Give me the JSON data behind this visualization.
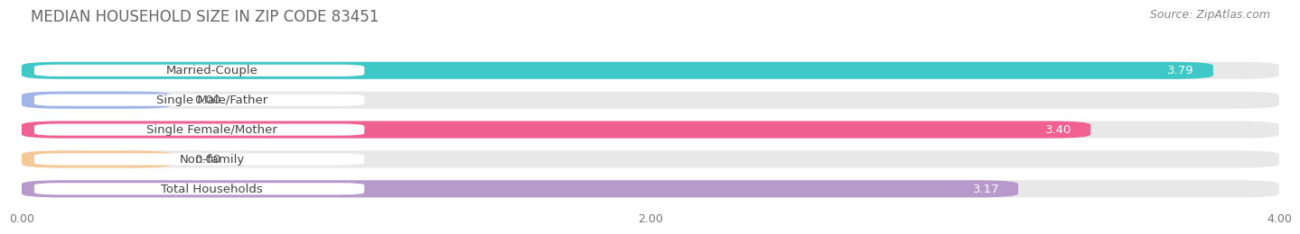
{
  "title": "MEDIAN HOUSEHOLD SIZE IN ZIP CODE 83451",
  "source": "Source: ZipAtlas.com",
  "categories": [
    "Married-Couple",
    "Single Male/Father",
    "Single Female/Mother",
    "Non-family",
    "Total Households"
  ],
  "values": [
    3.79,
    0.0,
    3.4,
    0.0,
    3.17
  ],
  "bar_colors": [
    "#3ec8c8",
    "#a0b4e8",
    "#f06090",
    "#f5c897",
    "#b899cc"
  ],
  "xlim": [
    0,
    4.0
  ],
  "xticks": [
    0.0,
    2.0,
    4.0
  ],
  "xticklabels": [
    "0.00",
    "2.00",
    "4.00"
  ],
  "bar_height": 0.58,
  "background_color": "#ffffff",
  "bar_bg_color": "#e8e8e8",
  "title_fontsize": 12,
  "source_fontsize": 9,
  "label_fontsize": 9.5,
  "value_fontsize": 9.5,
  "zero_bar_display": [
    0.48,
    0.48
  ]
}
